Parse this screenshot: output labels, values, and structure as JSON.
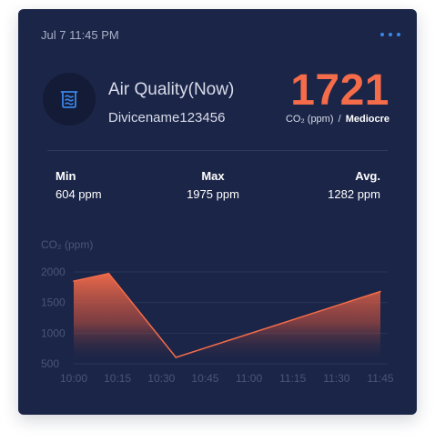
{
  "header": {
    "timestamp": "Jul 7 11:45 PM",
    "more_icon": "more-horizontal-icon"
  },
  "device": {
    "icon": "air-filter-icon",
    "title": "Air Quality(Now)",
    "name": "Divicename123456"
  },
  "reading": {
    "value": "1721",
    "unit": "CO₂ (ppm)",
    "separator": "/",
    "quality": "Mediocre",
    "accent_color": "#f46c4a"
  },
  "stats": {
    "min": {
      "label": "Min",
      "value": "604 ppm"
    },
    "max": {
      "label": "Max",
      "value": "1975 ppm"
    },
    "avg": {
      "label": "Avg.",
      "value": "1282 ppm"
    }
  },
  "chart_data": {
    "type": "area",
    "ylabel": "CO₂ (ppm)",
    "x": [
      "10:00",
      "10:15",
      "10:30",
      "10:45",
      "11:00",
      "11:15",
      "11:30",
      "11:45"
    ],
    "series": [
      {
        "points": [
          {
            "x": "10:00",
            "y": 1850
          },
          {
            "x": "10:12",
            "y": 1975
          },
          {
            "x": "10:35",
            "y": 604
          },
          {
            "x": "11:45",
            "y": 1680
          }
        ],
        "color": "#f46c4a"
      }
    ],
    "yticks": [
      2000,
      1500,
      1000,
      500
    ],
    "ylim": [
      500,
      2000
    ],
    "grid": true
  }
}
